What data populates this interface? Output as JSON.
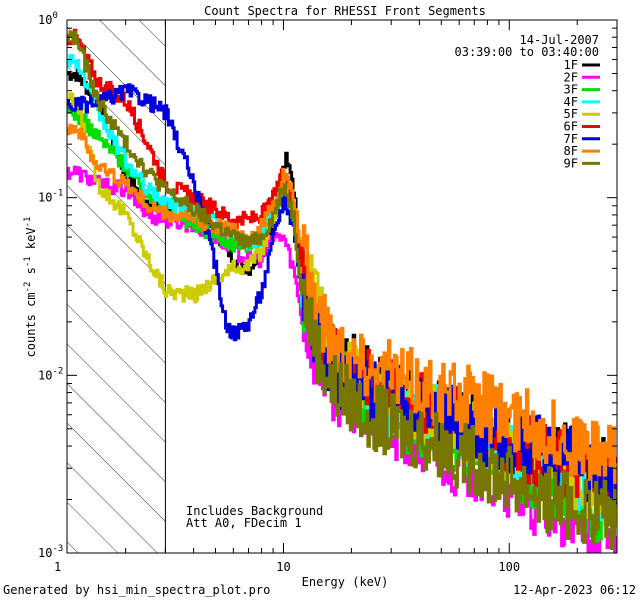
{
  "chart_data": {
    "type": "line",
    "title": "Count Spectra for RHESSI Front Segments",
    "xlabel": "Energy (keV)",
    "ylabel": "counts cm-2 s-1 keV-1",
    "xscale": "log",
    "yscale": "log",
    "xlim": [
      1.1,
      300
    ],
    "ylim": [
      0.001,
      1.0
    ],
    "x_ticks": [
      {
        "value": 1,
        "label": "1"
      },
      {
        "value": 10,
        "label": "10"
      },
      {
        "value": 100,
        "label": "100"
      }
    ],
    "y_ticks": [
      {
        "value": 1.0,
        "base": "10",
        "exp": "0"
      },
      {
        "value": 0.1,
        "base": "10",
        "exp": "-1"
      },
      {
        "value": 0.01,
        "base": "10",
        "exp": "-2"
      },
      {
        "value": 0.001,
        "base": "10",
        "exp": "-3"
      }
    ],
    "shaded_region": {
      "x_from": 1.1,
      "x_to": 3.0,
      "pattern": "diagonal hatch"
    },
    "legend": {
      "position": "top-right",
      "date": "14-Jul-2007",
      "time_range": "03:39:00 to 03:40:00",
      "entries": [
        {
          "label": "1F",
          "color": "#000000"
        },
        {
          "label": "2F",
          "color": "#ff00ff"
        },
        {
          "label": "3F",
          "color": "#00dd00"
        },
        {
          "label": "4F",
          "color": "#00ffff"
        },
        {
          "label": "5F",
          "color": "#cccc00"
        },
        {
          "label": "6F",
          "color": "#ee0000"
        },
        {
          "label": "7F",
          "color": "#0000dd"
        },
        {
          "label": "8F",
          "color": "#ff7f00"
        },
        {
          "label": "9F",
          "color": "#777700"
        }
      ]
    },
    "annotations": [
      "Includes Background",
      "Att A0, FDecim 1"
    ],
    "series": [
      {
        "name": "1F",
        "color": "#000000",
        "x": [
          1.2,
          1.5,
          2,
          2.5,
          3,
          4,
          5,
          6,
          7,
          8,
          9,
          10,
          10.5,
          11,
          12,
          14,
          16,
          20,
          25,
          30,
          40,
          50,
          70,
          100,
          150,
          200,
          250,
          300
        ],
        "y": [
          0.5,
          0.35,
          0.13,
          0.095,
          0.09,
          0.08,
          0.065,
          0.045,
          0.04,
          0.05,
          0.08,
          0.16,
          0.17,
          0.12,
          0.04,
          0.02,
          0.012,
          0.011,
          0.009,
          0.008,
          0.007,
          0.006,
          0.005,
          0.004,
          0.0032,
          0.0036,
          0.003,
          0.0028
        ]
      },
      {
        "name": "2F",
        "color": "#ff00ff",
        "x": [
          1.2,
          1.5,
          2,
          2.5,
          3,
          4,
          5,
          6,
          7,
          8,
          9,
          10,
          11,
          12,
          14,
          16,
          20,
          25,
          30,
          40,
          50,
          70,
          100,
          150,
          200,
          250,
          300
        ],
        "y": [
          0.14,
          0.12,
          0.11,
          0.08,
          0.075,
          0.07,
          0.06,
          0.05,
          0.045,
          0.045,
          0.06,
          0.06,
          0.04,
          0.022,
          0.012,
          0.009,
          0.007,
          0.006,
          0.005,
          0.004,
          0.0035,
          0.003,
          0.0022,
          0.0017,
          0.0015,
          0.0013,
          0.0013
        ]
      },
      {
        "name": "3F",
        "color": "#00dd00",
        "x": [
          1.2,
          1.5,
          2,
          2.5,
          3,
          4,
          5,
          6,
          7,
          8,
          9,
          10,
          11,
          12,
          14,
          16,
          20,
          25,
          30,
          40,
          50,
          70,
          100,
          150,
          200,
          250,
          300
        ],
        "y": [
          0.3,
          0.22,
          0.15,
          0.1,
          0.09,
          0.07,
          0.06,
          0.055,
          0.055,
          0.06,
          0.08,
          0.1,
          0.08,
          0.03,
          0.016,
          0.011,
          0.008,
          0.007,
          0.006,
          0.0055,
          0.005,
          0.004,
          0.0033,
          0.0025,
          0.002,
          0.0018,
          0.0016
        ]
      },
      {
        "name": "4F",
        "color": "#00ffff",
        "x": [
          1.2,
          1.5,
          2,
          2.5,
          3,
          4,
          5,
          6,
          7,
          8,
          9,
          10,
          11,
          12,
          14,
          16,
          20,
          25,
          30,
          40,
          50,
          70,
          100,
          150,
          200,
          250,
          300
        ],
        "y": [
          0.6,
          0.3,
          0.16,
          0.11,
          0.095,
          0.085,
          0.075,
          0.06,
          0.055,
          0.06,
          0.09,
          0.12,
          0.09,
          0.035,
          0.018,
          0.012,
          0.009,
          0.0075,
          0.0065,
          0.006,
          0.0055,
          0.0045,
          0.0038,
          0.003,
          0.0026,
          0.0024,
          0.0022
        ]
      },
      {
        "name": "5F",
        "color": "#cccc00",
        "x": [
          1.2,
          1.5,
          2,
          2.5,
          3,
          4,
          5,
          6,
          7,
          8,
          9,
          10,
          11,
          12,
          14,
          16,
          20,
          25,
          30,
          40,
          50,
          70,
          100,
          150,
          200,
          250,
          300
        ],
        "y": [
          0.35,
          0.12,
          0.08,
          0.045,
          0.03,
          0.028,
          0.035,
          0.04,
          0.042,
          0.05,
          0.08,
          0.13,
          0.1,
          0.05,
          0.025,
          0.014,
          0.01,
          0.008,
          0.007,
          0.006,
          0.0055,
          0.0045,
          0.0038,
          0.003,
          0.0025,
          0.0023,
          0.002
        ]
      },
      {
        "name": "6F",
        "color": "#ee0000",
        "x": [
          1.2,
          1.5,
          2,
          2.5,
          3,
          4,
          5,
          6,
          7,
          8,
          9,
          10,
          11,
          12,
          14,
          16,
          20,
          25,
          30,
          40,
          50,
          70,
          100,
          150,
          200,
          250,
          300
        ],
        "y": [
          0.8,
          0.45,
          0.35,
          0.2,
          0.12,
          0.1,
          0.085,
          0.075,
          0.075,
          0.08,
          0.1,
          0.14,
          0.09,
          0.04,
          0.02,
          0.013,
          0.01,
          0.009,
          0.008,
          0.007,
          0.006,
          0.005,
          0.004,
          0.0035,
          0.003,
          0.0028,
          0.0026
        ]
      },
      {
        "name": "7F",
        "color": "#0000dd",
        "x": [
          1.2,
          1.5,
          2,
          2.5,
          3,
          4,
          5,
          5.5,
          6,
          7,
          8,
          9,
          10,
          11,
          12,
          14,
          16,
          20,
          25,
          30,
          40,
          50,
          70,
          100,
          150,
          200,
          250,
          300
        ],
        "y": [
          0.33,
          0.34,
          0.4,
          0.35,
          0.3,
          0.12,
          0.04,
          0.02,
          0.017,
          0.02,
          0.03,
          0.06,
          0.1,
          0.07,
          0.03,
          0.016,
          0.011,
          0.009,
          0.008,
          0.0075,
          0.007,
          0.006,
          0.005,
          0.0043,
          0.0036,
          0.0032,
          0.003,
          0.0028
        ]
      },
      {
        "name": "8F",
        "color": "#ff7f00",
        "x": [
          1.2,
          1.5,
          2,
          2.5,
          3,
          4,
          5,
          6,
          7,
          8,
          9,
          10,
          11,
          12,
          14,
          16,
          20,
          25,
          30,
          40,
          50,
          70,
          100,
          150,
          200,
          250,
          300
        ],
        "y": [
          0.25,
          0.15,
          0.12,
          0.09,
          0.08,
          0.075,
          0.07,
          0.065,
          0.06,
          0.07,
          0.09,
          0.14,
          0.1,
          0.05,
          0.025,
          0.017,
          0.013,
          0.011,
          0.01,
          0.009,
          0.008,
          0.007,
          0.0058,
          0.0048,
          0.004,
          0.0036,
          0.0033
        ]
      },
      {
        "name": "9F",
        "color": "#777700",
        "x": [
          1.2,
          1.5,
          2,
          2.5,
          3,
          4,
          5,
          6,
          7,
          8,
          9,
          10,
          11,
          12,
          14,
          16,
          20,
          25,
          30,
          40,
          50,
          70,
          100,
          150,
          200,
          250,
          300
        ],
        "y": [
          0.8,
          0.35,
          0.2,
          0.14,
          0.11,
          0.085,
          0.07,
          0.06,
          0.055,
          0.06,
          0.08,
          0.12,
          0.08,
          0.03,
          0.014,
          0.009,
          0.007,
          0.006,
          0.005,
          0.0045,
          0.004,
          0.0033,
          0.0026,
          0.002,
          0.0018,
          0.0017,
          0.0016
        ]
      }
    ]
  },
  "footer": {
    "generated_by": "Generated by hsi_min_spectra_plot.pro",
    "timestamp": "12-Apr-2023 06:12"
  }
}
